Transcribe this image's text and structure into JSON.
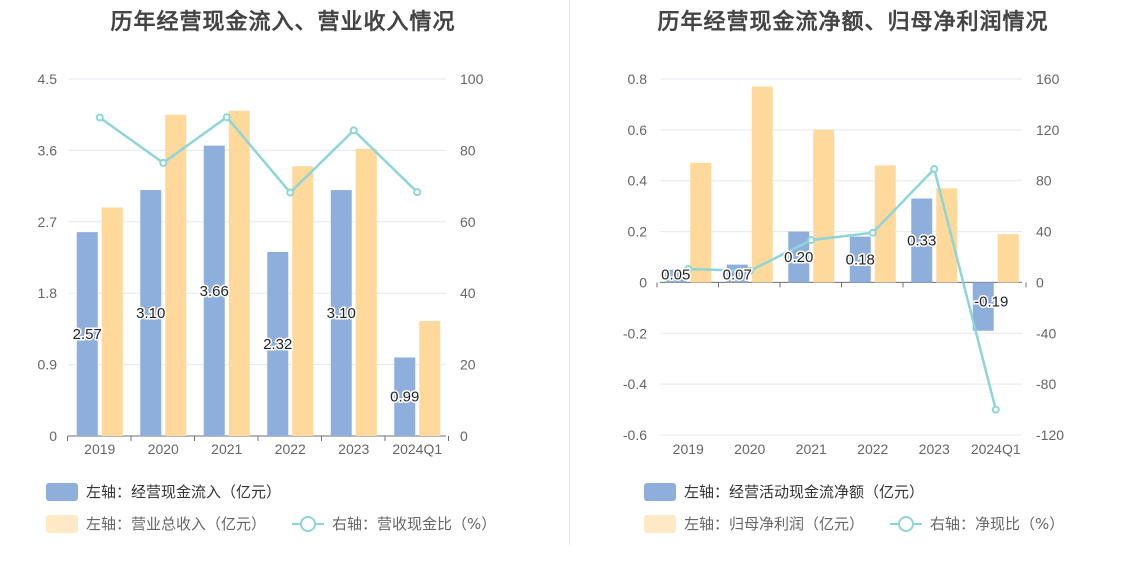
{
  "chart_data": [
    {
      "type": "bar",
      "title": "历年经营现金流入、营业收入情况",
      "categories": [
        "2019",
        "2020",
        "2021",
        "2022",
        "2023",
        "2024Q1"
      ],
      "left_axis": {
        "ticks": [
          "0",
          "0.9",
          "1.8",
          "2.7",
          "3.6",
          "4.5"
        ],
        "range": [
          0,
          4.5
        ]
      },
      "right_axis": {
        "ticks": [
          "0",
          "20",
          "40",
          "60",
          "80",
          "100"
        ],
        "range": [
          0,
          100
        ]
      },
      "series": [
        {
          "name": "左轴：经营现金流入（亿元）",
          "axis": "left",
          "kind": "bar",
          "color": "#8eaedb",
          "values": [
            2.57,
            3.1,
            3.66,
            2.32,
            3.1,
            0.99
          ],
          "labels": [
            "2.57",
            "3.10",
            "3.66",
            "2.32",
            "3.10",
            "0.99"
          ]
        },
        {
          "name": "左轴：营业总收入（亿元）",
          "axis": "left",
          "kind": "bar",
          "color": "#fed99b",
          "values": [
            2.88,
            4.05,
            4.1,
            3.4,
            3.62,
            1.45
          ]
        },
        {
          "name": "右轴：营收现金比（%）",
          "axis": "right",
          "kind": "line",
          "color": "#8dd5d8",
          "values": [
            89.2,
            76.5,
            89.3,
            68.2,
            85.6,
            68.3
          ]
        }
      ]
    },
    {
      "type": "bar",
      "title": "历年经营现金流净额、归母净利润情况",
      "categories": [
        "2019",
        "2020",
        "2021",
        "2022",
        "2023",
        "2024Q1"
      ],
      "left_axis": {
        "ticks": [
          "-0.6",
          "-0.4",
          "-0.2",
          "0",
          "0.2",
          "0.4",
          "0.6",
          "0.8"
        ],
        "range": [
          -0.6,
          0.8
        ]
      },
      "right_axis": {
        "ticks": [
          "-120",
          "-80",
          "-40",
          "0",
          "40",
          "80",
          "120",
          "160"
        ],
        "range": [
          -120,
          160
        ]
      },
      "series": [
        {
          "name": "左轴：经营活动现金流净额（亿元）",
          "axis": "left",
          "kind": "bar",
          "color": "#8eaedb",
          "values": [
            0.05,
            0.07,
            0.2,
            0.18,
            0.33,
            -0.19
          ],
          "labels": [
            "0.05",
            "0.07",
            "0.20",
            "0.18",
            "0.33",
            "-0.19"
          ]
        },
        {
          "name": "左轴：归母净利润（亿元）",
          "axis": "left",
          "kind": "bar",
          "color": "#fed99b",
          "values": [
            0.47,
            0.77,
            0.6,
            0.46,
            0.37,
            0.19
          ]
        },
        {
          "name": "右轴：净现比（%）",
          "axis": "right",
          "kind": "line",
          "color": "#8dd5d8",
          "values": [
            10.6,
            9.1,
            33.3,
            39.1,
            89.2,
            -100
          ]
        }
      ]
    }
  ]
}
